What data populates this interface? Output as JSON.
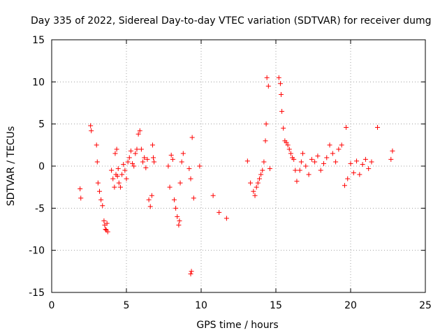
{
  "chart_data": {
    "type": "scatter",
    "title": "Day 335 of 2022, Sidereal Day-to-day VTEC variation (SDTVAR) for receiver dumg",
    "xlabel": "GPS time / hours",
    "ylabel": "SDTVAR / TECUs",
    "xlim": [
      0,
      25
    ],
    "ylim": [
      -15,
      15
    ],
    "xticks": [
      0,
      5,
      10,
      15,
      20,
      25
    ],
    "yticks": [
      -15,
      -10,
      -5,
      0,
      5,
      10,
      15
    ],
    "grid": true,
    "marker": "plus",
    "series_color": "#ff0000",
    "series": [
      {
        "name": "SDTVAR",
        "x": [
          1.9,
          1.95,
          2.6,
          2.65,
          3.0,
          3.05,
          3.1,
          3.2,
          3.3,
          3.4,
          3.5,
          3.6,
          3.55,
          3.65,
          3.7,
          3.75,
          4.0,
          4.1,
          4.2,
          4.3,
          4.25,
          4.35,
          4.4,
          4.45,
          4.5,
          4.6,
          4.7,
          4.8,
          4.9,
          5.0,
          5.1,
          5.2,
          5.3,
          5.4,
          5.5,
          5.6,
          5.7,
          5.8,
          5.9,
          6.0,
          6.1,
          6.2,
          6.3,
          6.4,
          6.5,
          6.6,
          6.7,
          6.8,
          6.75,
          6.85,
          7.8,
          7.9,
          8.0,
          8.1,
          8.2,
          8.3,
          8.4,
          8.5,
          8.55,
          8.6,
          8.7,
          8.8,
          9.2,
          9.3,
          9.35,
          9.3,
          9.4,
          9.5,
          9.9,
          10.8,
          11.2,
          11.7,
          13.1,
          13.3,
          13.5,
          13.6,
          13.7,
          13.8,
          13.9,
          14.0,
          14.1,
          14.2,
          14.3,
          14.35,
          14.4,
          14.5,
          14.6,
          15.2,
          15.3,
          15.35,
          15.4,
          15.5,
          15.6,
          15.7,
          15.8,
          15.9,
          16.0,
          16.1,
          16.2,
          16.3,
          16.4,
          16.6,
          16.7,
          16.8,
          17.0,
          17.2,
          17.4,
          17.6,
          17.8,
          18.0,
          18.2,
          18.4,
          18.6,
          18.8,
          19.0,
          19.2,
          19.4,
          19.6,
          19.7,
          19.8,
          20.0,
          20.2,
          20.4,
          20.6,
          20.8,
          21.0,
          21.2,
          21.4,
          21.8,
          22.7,
          22.8
        ],
        "y": [
          -2.7,
          -3.8,
          4.8,
          4.2,
          2.5,
          0.5,
          -2.0,
          -3.0,
          -4.0,
          -4.7,
          -6.5,
          -7.5,
          -7.0,
          -7.6,
          -6.8,
          -7.8,
          -0.5,
          -1.5,
          -2.5,
          -1.0,
          1.5,
          2.0,
          -1.2,
          -0.3,
          -2.0,
          -2.5,
          -1.0,
          0.2,
          -0.5,
          -1.5,
          0.5,
          1.0,
          1.8,
          0.3,
          0.0,
          1.5,
          2.0,
          3.8,
          4.2,
          2.0,
          0.5,
          1.0,
          -0.2,
          0.8,
          -4.0,
          -4.8,
          -3.5,
          1.0,
          2.5,
          0.5,
          0.0,
          -2.5,
          1.3,
          0.8,
          -4.0,
          -5.0,
          -6.0,
          -7.0,
          -6.5,
          -2.0,
          0.5,
          1.5,
          -0.3,
          -1.5,
          -12.5,
          -12.8,
          3.4,
          -3.8,
          0.0,
          -3.5,
          -5.5,
          -6.2,
          0.6,
          -2.0,
          -3.0,
          -3.5,
          -2.5,
          -2.0,
          -1.5,
          -1.0,
          -0.5,
          0.5,
          3.0,
          5.0,
          10.5,
          9.5,
          -0.3,
          10.5,
          9.8,
          8.5,
          6.5,
          4.5,
          3.0,
          2.8,
          2.5,
          2.0,
          1.5,
          1.0,
          0.8,
          -0.5,
          -1.8,
          -0.5,
          0.5,
          1.5,
          0.0,
          -1.0,
          0.8,
          0.5,
          1.2,
          -0.5,
          0.3,
          1.0,
          2.5,
          1.5,
          0.5,
          2.0,
          2.5,
          -2.3,
          4.6,
          -1.5,
          0.3,
          -0.8,
          0.6,
          -1.0,
          0.2,
          0.8,
          -0.3,
          0.5,
          4.6,
          0.8,
          1.8
        ]
      }
    ]
  }
}
